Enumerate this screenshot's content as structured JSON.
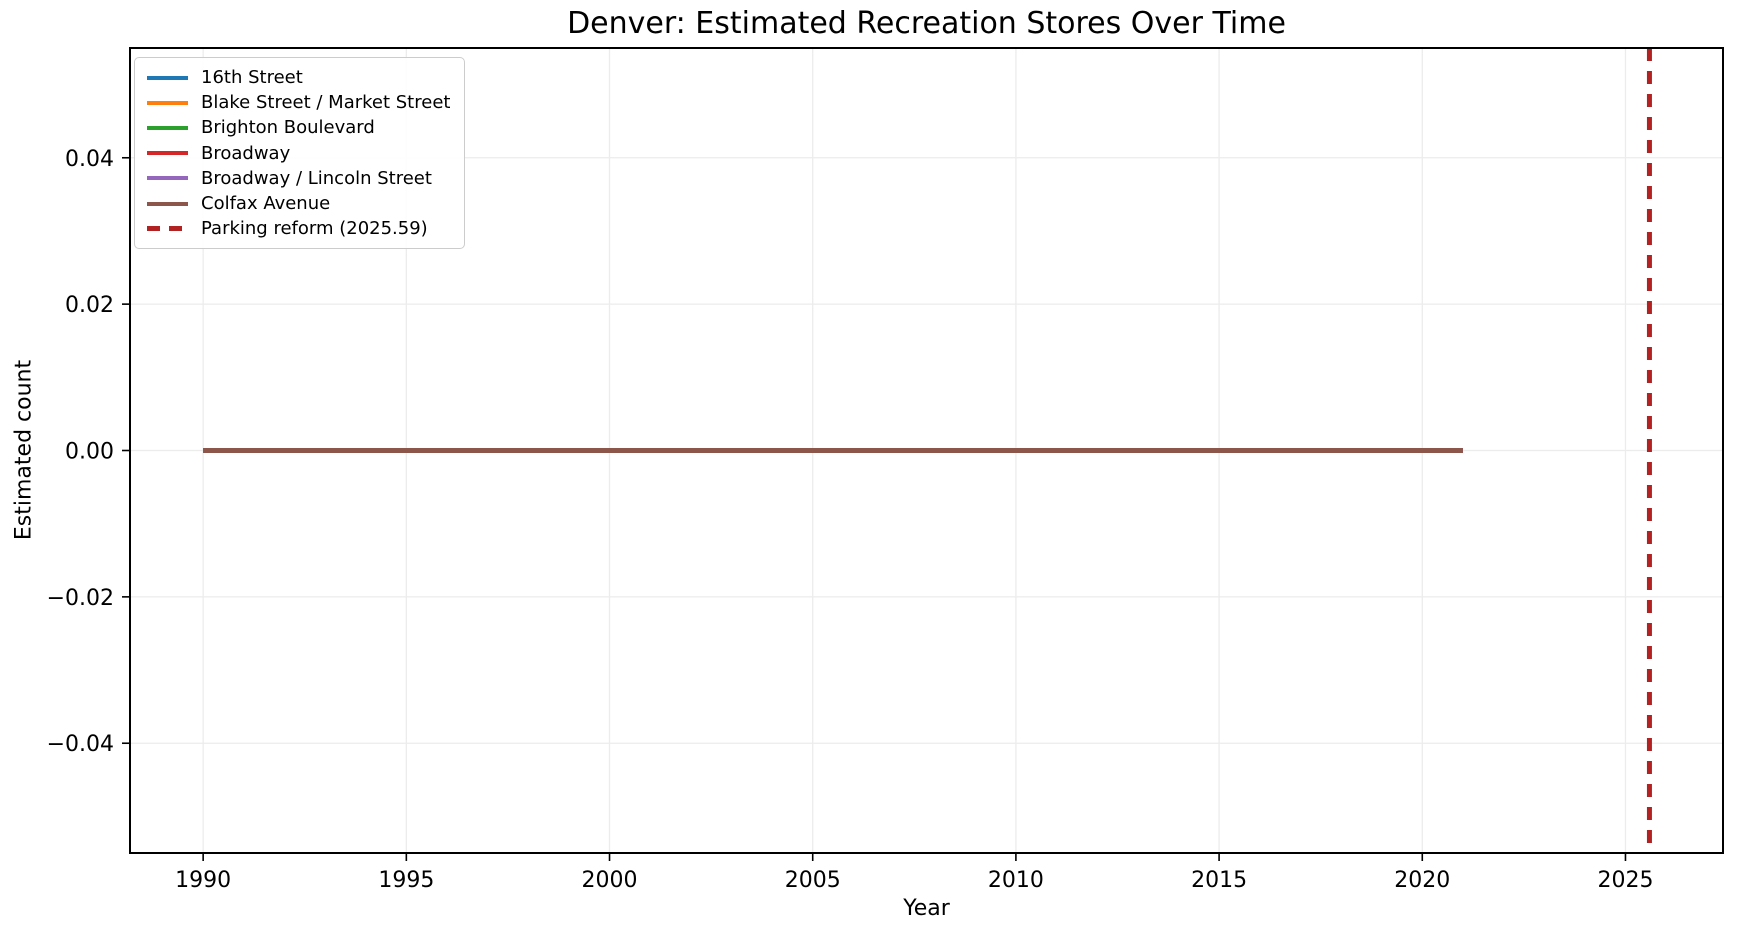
{
  "chart_data": {
    "type": "line",
    "title": "Denver: Estimated Recreation Stores Over Time",
    "xlabel": "Year",
    "ylabel": "Estimated count",
    "xlim": [
      1988.2,
      2027.4
    ],
    "ylim": [
      -0.055,
      0.055
    ],
    "xticks": {
      "values": [
        1990,
        1995,
        2000,
        2005,
        2010,
        2015,
        2020,
        2025
      ],
      "labels": [
        "1990",
        "1995",
        "2000",
        "2005",
        "2010",
        "2015",
        "2020",
        "2025"
      ]
    },
    "yticks": {
      "values": [
        -0.04,
        -0.02,
        0.0,
        0.02,
        0.04
      ],
      "labels": [
        "−0.04",
        "−0.02",
        "0.00",
        "0.02",
        "0.04"
      ]
    },
    "grid": true,
    "grid_color": "#ececec",
    "axis_color": "#000000",
    "background_color": "#ffffff",
    "legend_position": "upper-left",
    "series": [
      {
        "name": "16th Street",
        "color": "#1f77b4",
        "style": "solid",
        "x": [
          1990,
          2021
        ],
        "y": [
          0,
          0
        ]
      },
      {
        "name": "Blake Street / Market Street",
        "color": "#ff7f0e",
        "style": "solid",
        "x": [
          1990,
          2021
        ],
        "y": [
          0,
          0
        ]
      },
      {
        "name": "Brighton Boulevard",
        "color": "#2ca02c",
        "style": "solid",
        "x": [
          1990,
          2021
        ],
        "y": [
          0,
          0
        ]
      },
      {
        "name": "Broadway",
        "color": "#d62728",
        "style": "solid",
        "x": [
          1990,
          2021
        ],
        "y": [
          0,
          0
        ]
      },
      {
        "name": "Broadway / Lincoln Street",
        "color": "#9467bd",
        "style": "solid",
        "x": [
          1990,
          2021
        ],
        "y": [
          0,
          0
        ]
      },
      {
        "name": "Colfax Avenue",
        "color": "#8c564b",
        "style": "solid",
        "x": [
          1990,
          2021
        ],
        "y": [
          0,
          0
        ]
      }
    ],
    "vlines": [
      {
        "label": "Parking reform (2025.59)",
        "x": 2025.59,
        "color": "#b22222",
        "style": "dashed"
      }
    ]
  }
}
